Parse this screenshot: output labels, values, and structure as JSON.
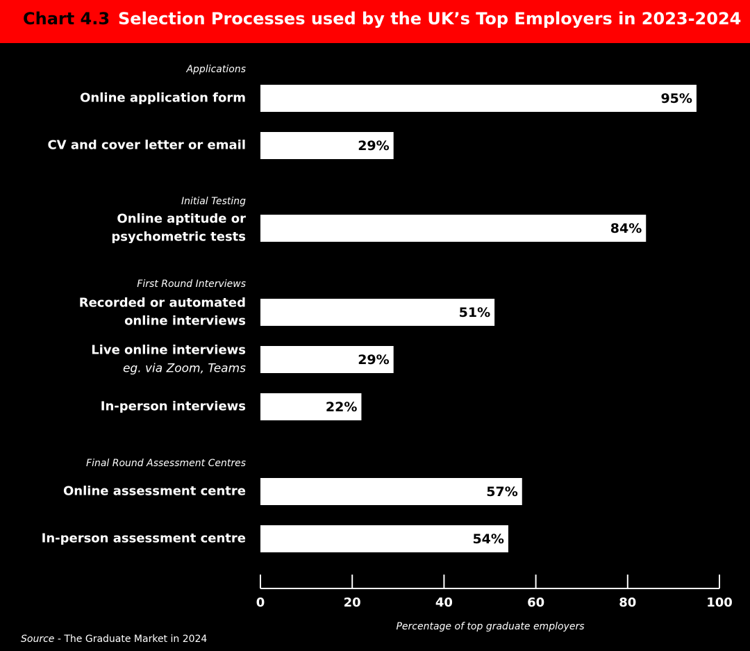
{
  "header": {
    "chart_number": "Chart 4.3",
    "title": "Selection Processes used by the UK’s Top Employers in 2023-2024"
  },
  "source": {
    "label": "Source",
    "text": " - The Graduate Market in 2024"
  },
  "colors": {
    "header_background": "#ff0000",
    "background": "#000000",
    "bar": "#ffffff",
    "value_text": "#000000",
    "text": "#ffffff"
  },
  "chart_data": {
    "type": "bar",
    "orientation": "horizontal",
    "groups": [
      {
        "name": "Applications",
        "items": [
          {
            "label": [
              "Online application form"
            ],
            "value": 95,
            "value_label": "95%"
          },
          {
            "label": [
              "CV and cover letter or email"
            ],
            "value": 29,
            "value_label": "29%"
          }
        ]
      },
      {
        "name": "Initial Testing",
        "items": [
          {
            "label": [
              "Online aptitude or",
              "psychometric tests"
            ],
            "value": 84,
            "value_label": "84%"
          }
        ]
      },
      {
        "name": "First Round Interviews",
        "items": [
          {
            "label": [
              "Recorded or automated",
              "online interviews"
            ],
            "value": 51,
            "value_label": "51%"
          },
          {
            "label": [
              "Live online interviews"
            ],
            "sublabel": "eg. via Zoom, Teams",
            "value": 29,
            "value_label": "29%"
          },
          {
            "label": [
              "In-person interviews"
            ],
            "value": 22,
            "value_label": "22%"
          }
        ]
      },
      {
        "name": "Final Round Assessment Centres",
        "items": [
          {
            "label": [
              "Online assessment centre"
            ],
            "value": 57,
            "value_label": "57%"
          },
          {
            "label": [
              "In-person assessment centre"
            ],
            "value": 54,
            "value_label": "54%"
          }
        ]
      }
    ],
    "xlabel": "Percentage of top graduate employers",
    "xlim": [
      0,
      100
    ],
    "xticks": [
      0,
      20,
      40,
      60,
      80,
      100
    ]
  }
}
